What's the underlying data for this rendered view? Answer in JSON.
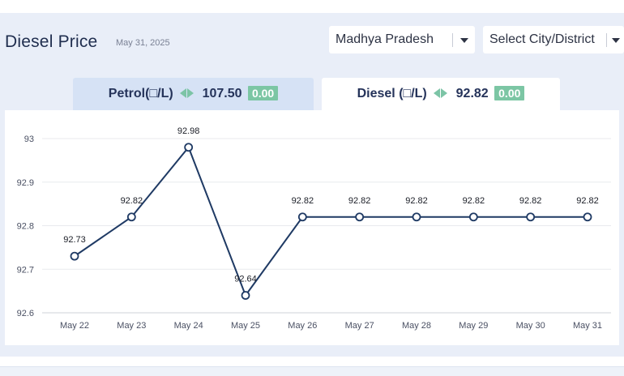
{
  "header": {
    "title": "Diesel Price",
    "date": "May 31, 2025"
  },
  "filters": {
    "state": {
      "selected": "Madhya Pradesh"
    },
    "city": {
      "placeholder": "Select City/District"
    }
  },
  "tabs": [
    {
      "name": "petrol",
      "label": "Petrol(□/L)",
      "price": "107.50",
      "change": "0.00",
      "active": false
    },
    {
      "name": "diesel",
      "label": "Diesel (□/L)",
      "price": "92.82",
      "change": "0.00",
      "active": true
    }
  ],
  "colors": {
    "line": "#1f3a64",
    "marker_fill": "#ffffff",
    "change_badge": "#7cc6a4",
    "active_tab_bg": "#ffffff",
    "inactive_tab_bg": "#d6e2f5",
    "panel_bg": "#e9eef8"
  },
  "chart_data": {
    "type": "line",
    "categories": [
      "May 22",
      "May 23",
      "May 24",
      "May 25",
      "May 26",
      "May 27",
      "May 28",
      "May 29",
      "May 30",
      "May 31"
    ],
    "values": [
      92.73,
      92.82,
      92.98,
      92.64,
      92.82,
      92.82,
      92.82,
      92.82,
      92.82,
      92.82
    ],
    "data_labels": [
      "92.73",
      "92.82",
      "92.98",
      "92.64",
      "92.82",
      "92.82",
      "92.82",
      "92.82",
      "92.82",
      "92.82"
    ],
    "y_ticks": [
      "92.6",
      "92.7",
      "92.8",
      "92.9",
      "93"
    ],
    "ylim": [
      92.6,
      93
    ],
    "grid": true,
    "title": "",
    "xlabel": "",
    "ylabel": ""
  }
}
